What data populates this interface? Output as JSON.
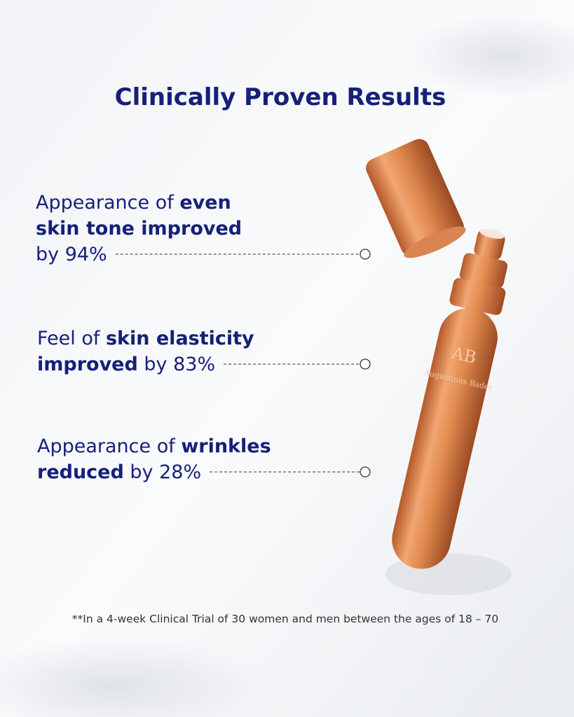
{
  "title": "Clinically Proven Results",
  "claims": [
    {
      "lines": [
        [
          {
            "text": "Appearance of ",
            "bold": false
          },
          {
            "text": "even",
            "bold": true
          }
        ],
        [
          {
            "text": "skin tone improved",
            "bold": true
          }
        ],
        [
          {
            "text": "by 94%",
            "bold": false
          }
        ]
      ]
    },
    {
      "lines": [
        [
          {
            "text": "Feel of ",
            "bold": false
          },
          {
            "text": "skin elasticity",
            "bold": true
          }
        ],
        [
          {
            "text": "improved",
            "bold": true
          },
          {
            "text": " by 83%",
            "bold": false
          }
        ]
      ]
    },
    {
      "lines": [
        [
          {
            "text": "Appearance of ",
            "bold": false
          },
          {
            "text": "wrinkles",
            "bold": true
          }
        ],
        [
          {
            "text": "reduced",
            "bold": true
          },
          {
            "text": " by 28%",
            "bold": false
          }
        ]
      ]
    }
  ],
  "product": {
    "monogram": "AB",
    "brand": "Augustinus Bader"
  },
  "footnote": "**In a 4-week Clinical Trial of 30 women and men between the ages of 18 – 70"
}
